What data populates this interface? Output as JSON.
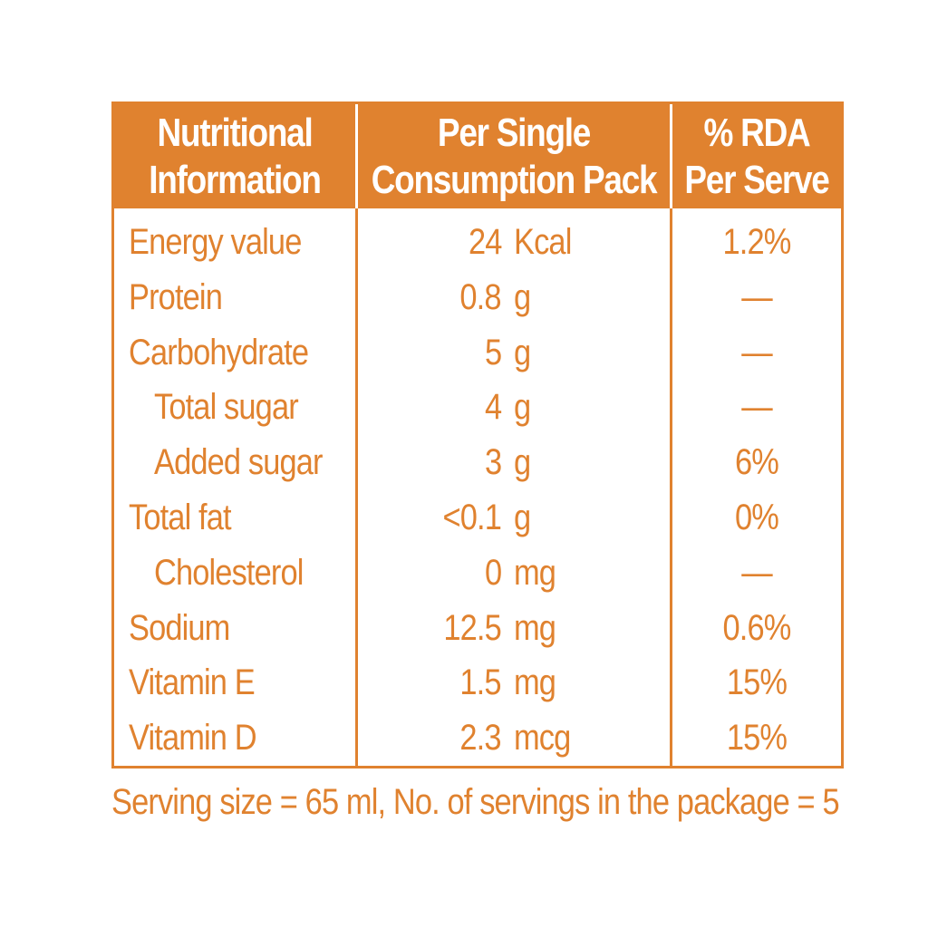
{
  "colors": {
    "accent": "#e0822f",
    "background": "#ffffff",
    "header_text": "#ffffff"
  },
  "table": {
    "headers": [
      {
        "line1": "Nutritional",
        "line2": "Information"
      },
      {
        "line1": "Per Single",
        "line2": "Consumption Pack"
      },
      {
        "line1": "% RDA",
        "line2": "Per Serve"
      }
    ],
    "rows": [
      {
        "name": "Energy value",
        "amount": "24",
        "unit": "Kcal",
        "rda": "1.2%"
      },
      {
        "name": "Protein",
        "amount": "0.8",
        "unit": "g",
        "rda": "—"
      },
      {
        "name": "Carbohydrate",
        "amount": "5",
        "unit": "g",
        "rda": "—"
      },
      {
        "name": "Total sugar",
        "amount": "4",
        "unit": "g",
        "rda": "—"
      },
      {
        "name": "Added sugar",
        "amount": "3",
        "unit": "g",
        "rda": "6%"
      },
      {
        "name": "Total fat",
        "amount": "<0.1",
        "unit": "g",
        "rda": "0%"
      },
      {
        "name": "Cholesterol",
        "amount": "0",
        "unit": "mg",
        "rda": "—"
      },
      {
        "name": "Sodium",
        "amount": "12.5",
        "unit": "mg",
        "rda": "0.6%"
      },
      {
        "name": "Vitamin E",
        "amount": "1.5",
        "unit": "mg",
        "rda": "15%"
      },
      {
        "name": "Vitamin D",
        "amount": "2.3",
        "unit": "mcg",
        "rda": "15%"
      }
    ]
  },
  "footer": "Serving size = 65 ml, No. of servings in the package = 5"
}
